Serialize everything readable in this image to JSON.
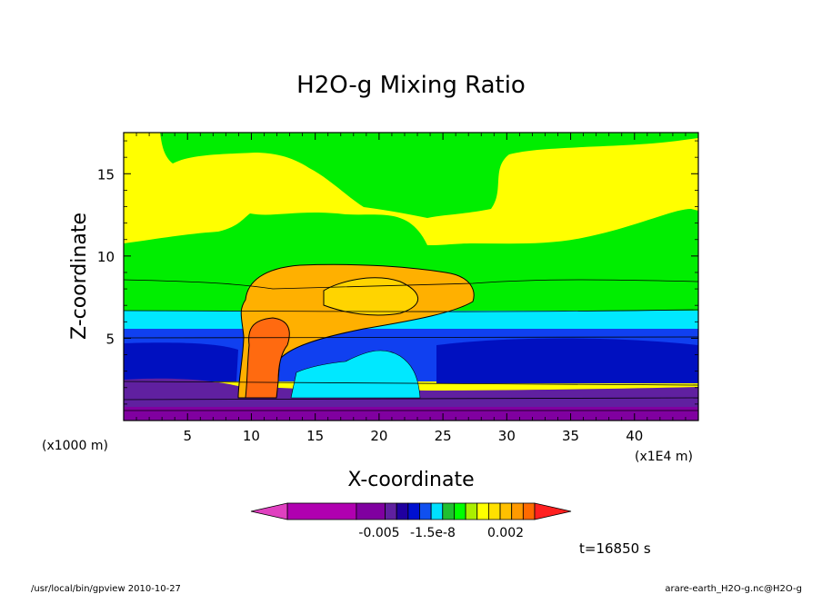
{
  "chart_data": {
    "type": "contour",
    "title": "H2O-g Mixing Ratio",
    "xlabel": "X-coordinate",
    "ylabel": "Z-coordinate",
    "x_unit_note": "(x1E4 m)",
    "y_unit_note": "(x1000 m)",
    "xlim": [
      0,
      45
    ],
    "ylim": [
      0,
      17.5
    ],
    "x_ticks": [
      5,
      10,
      15,
      20,
      25,
      30,
      35,
      40
    ],
    "y_ticks": [
      5,
      10,
      15
    ],
    "colorbar": {
      "labels": [
        "-0.005",
        "-1.5e-8",
        "0.002"
      ],
      "colors": [
        "#e040c0",
        "#b000b0",
        "#8000a0",
        "#6020a0",
        "#2000a0",
        "#0010d0",
        "#1050f0",
        "#00e0ff",
        "#20c030",
        "#00ff00",
        "#aaee00",
        "#ffff00",
        "#ffe000",
        "#ffc000",
        "#ff9a00",
        "#ff6a00",
        "#ff2020"
      ]
    },
    "regions": [
      {
        "name": "upper-yellow",
        "color": "#ffff00"
      },
      {
        "name": "green",
        "color": "#00ee00"
      },
      {
        "name": "cyan",
        "color": "#00e8ff"
      },
      {
        "name": "blue",
        "color": "#1040f0"
      },
      {
        "name": "dark-blue",
        "color": "#0010c0"
      },
      {
        "name": "purple",
        "color": "#6020a0"
      },
      {
        "name": "anvil-orange",
        "color": "#ffb000"
      },
      {
        "name": "anvil-core",
        "color": "#ffd400"
      },
      {
        "name": "updraft-core",
        "color": "#ff6a10"
      }
    ]
  },
  "timestamp": "t=16850 s",
  "footer": {
    "left": "/usr/local/bin/gpview  2010-10-27",
    "right": "arare-earth_H2O-g.nc@H2O-g"
  }
}
